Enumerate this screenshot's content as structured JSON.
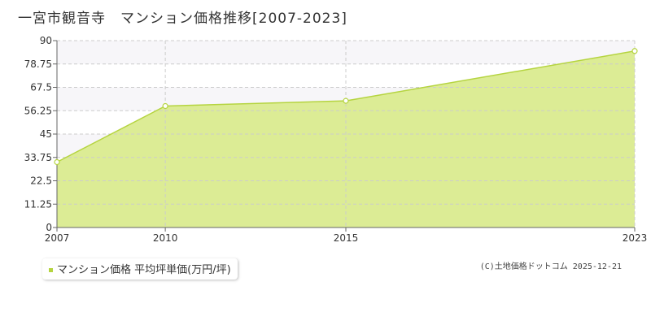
{
  "title": "一宮市観音寺　マンション価格推移[2007-2023]",
  "legend": {
    "label": "マンション価格 平均坪単価(万円/坪)"
  },
  "credit": "(C)土地価格ドットコム 2025-12-21",
  "colors": {
    "fill": "#dcec95",
    "line": "#b5d440",
    "grid": "#cccccc"
  },
  "chart_data": {
    "type": "area",
    "title": "一宮市観音寺　マンション価格推移[2007-2023]",
    "xlabel": "",
    "ylabel": "",
    "x": [
      2007,
      2010,
      2015,
      2023
    ],
    "series": [
      {
        "name": "マンション価格 平均坪単価(万円/坪)",
        "values": [
          31.5,
          58.5,
          61,
          85
        ]
      }
    ],
    "xlim": [
      2007,
      2023
    ],
    "ylim": [
      0,
      90
    ],
    "yticks": [
      0,
      11.25,
      22.5,
      33.75,
      45,
      56.25,
      67.5,
      78.75,
      90
    ],
    "ytick_labels": [
      "0",
      "11.25",
      "22.5",
      "33.75",
      "45",
      "56.25",
      "67.5",
      "78.75",
      "90"
    ],
    "xticks": [
      2007,
      2010,
      2015,
      2023
    ],
    "xtick_labels": [
      "2007",
      "2010",
      "2015",
      "2023"
    ],
    "grid": true,
    "legend_position": "bottom-left"
  }
}
